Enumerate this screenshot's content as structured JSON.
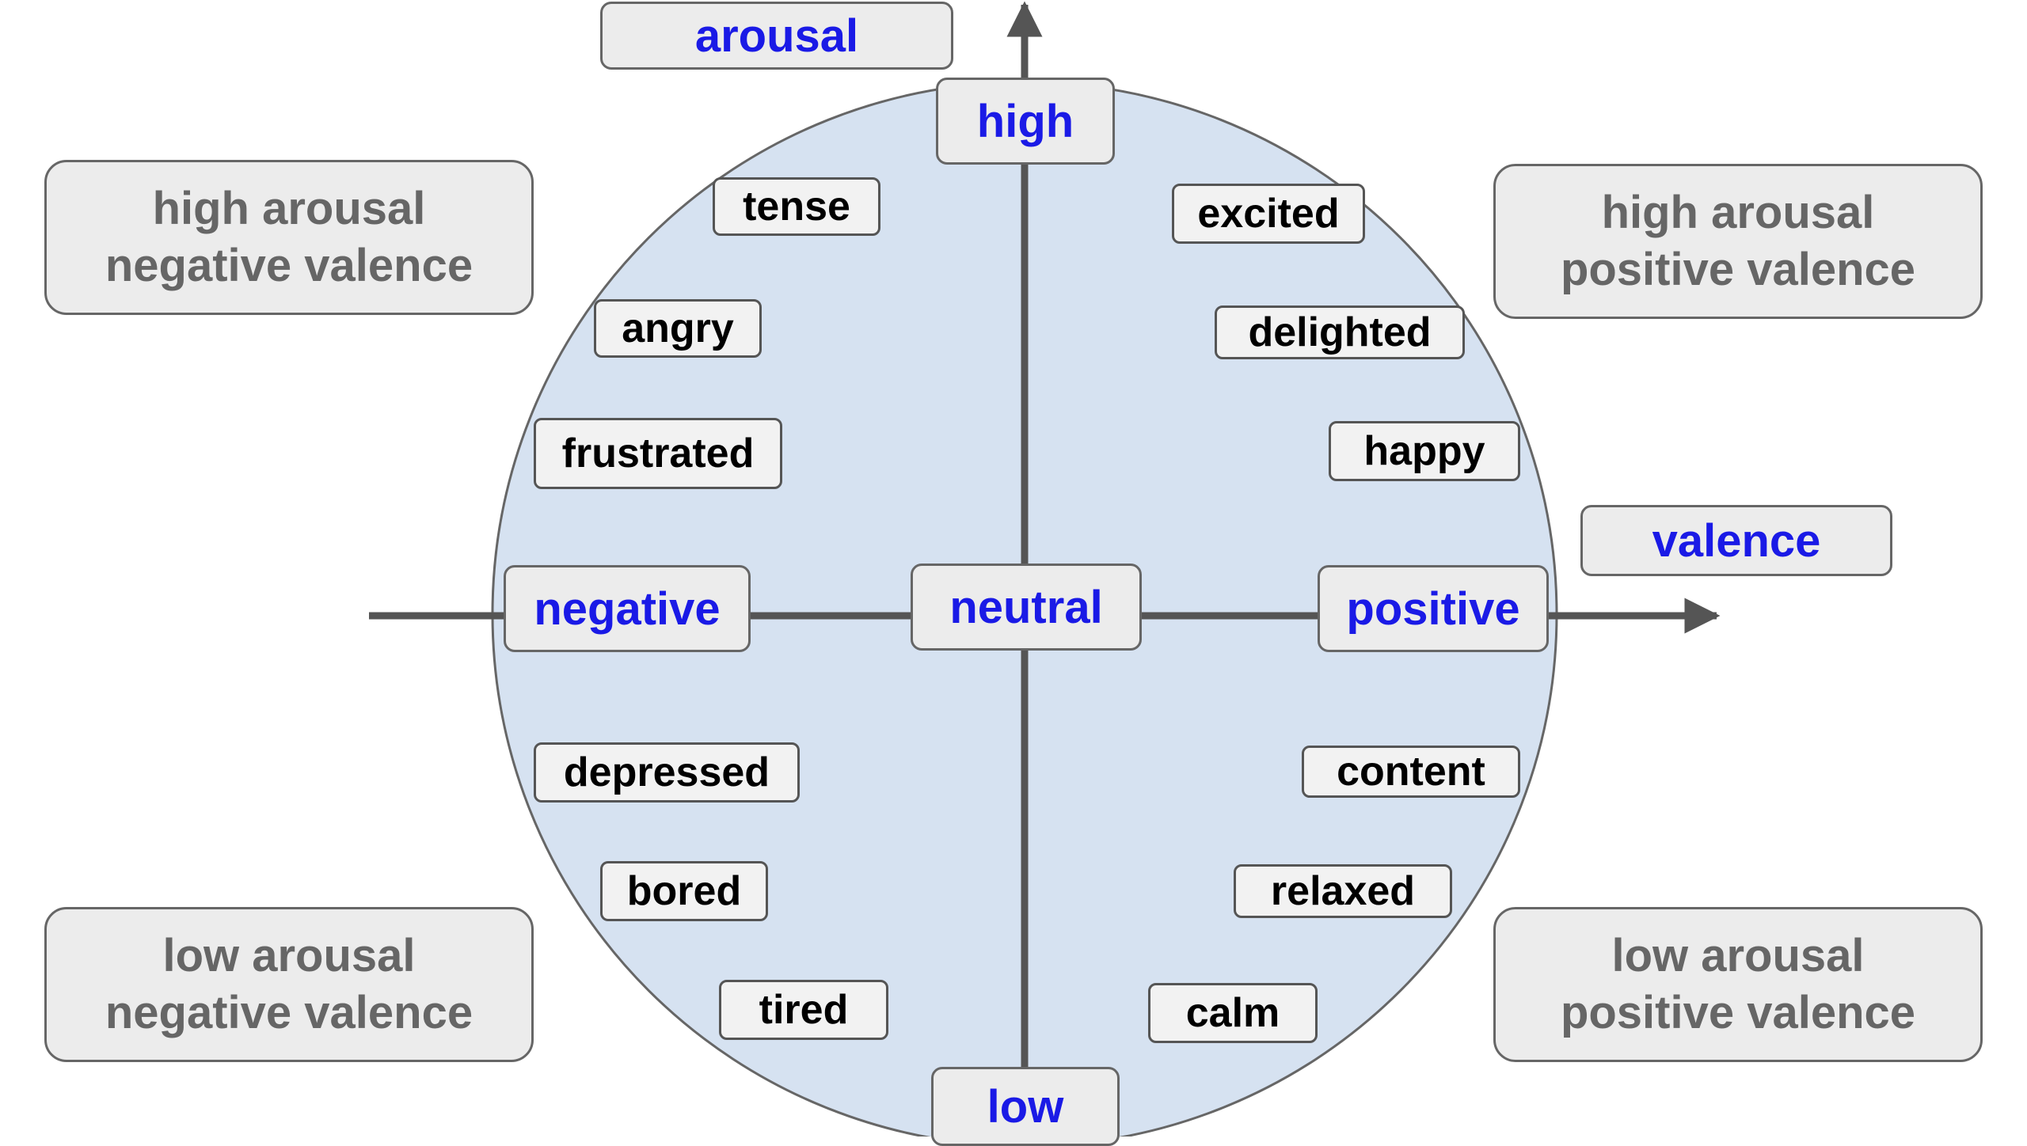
{
  "axes": {
    "arousal_label": "arousal",
    "valence_label": "valence",
    "high": "high",
    "low": "low",
    "negative": "negative",
    "positive": "positive",
    "neutral": "neutral"
  },
  "quadrants": {
    "top_left": {
      "line1": "high arousal",
      "line2": "negative valence"
    },
    "top_right": {
      "line1": "high arousal",
      "line2": "positive valence"
    },
    "bottom_left": {
      "line1": "low arousal",
      "line2": "negative valence"
    },
    "bottom_right": {
      "line1": "low arousal",
      "line2": "positive valence"
    }
  },
  "emotions": {
    "tense": "tense",
    "angry": "angry",
    "frustrated": "frustrated",
    "depressed": "depressed",
    "bored": "bored",
    "tired": "tired",
    "excited": "excited",
    "delighted": "delighted",
    "happy": "happy",
    "content": "content",
    "relaxed": "relaxed",
    "calm": "calm"
  },
  "colors": {
    "circle_fill": "#d6e2f1",
    "axis": "#555555",
    "pole_text": "#1a1ae6",
    "quadrant_text": "#666666",
    "emotion_text": "#000000",
    "box_fill": "#f2f2f2"
  }
}
